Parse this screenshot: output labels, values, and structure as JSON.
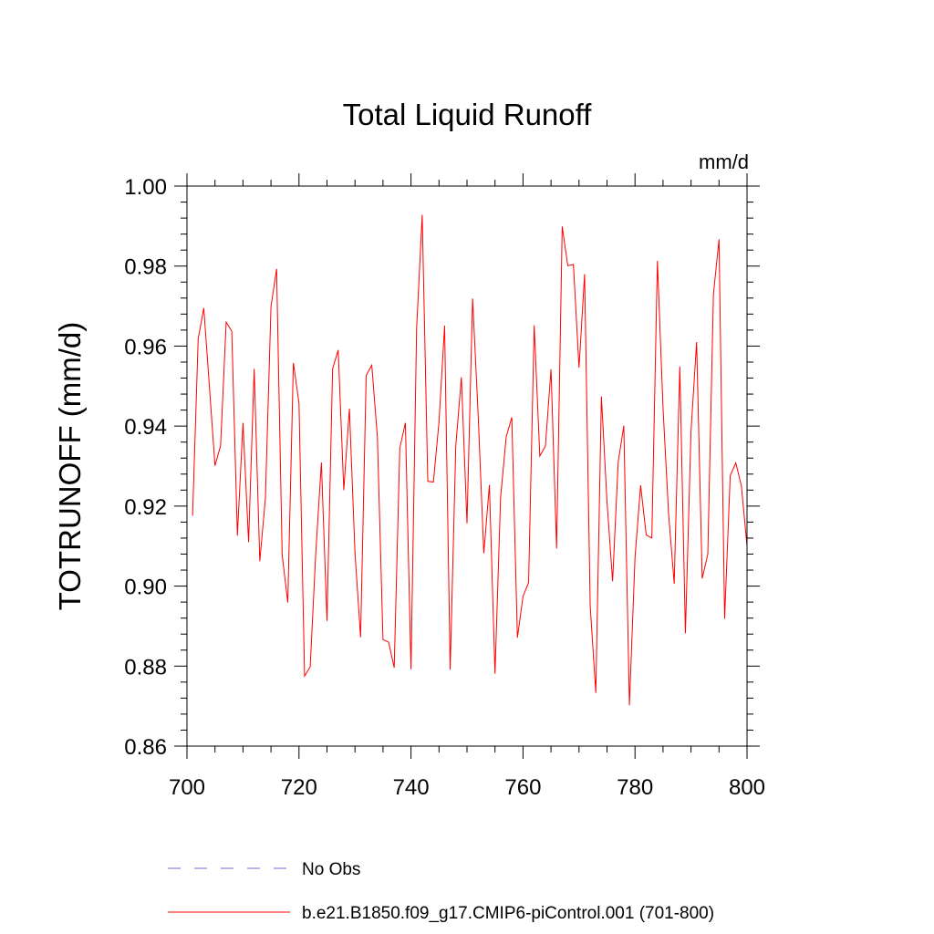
{
  "chart_data": {
    "type": "line",
    "title": "Total Liquid Runoff",
    "units": "mm/d",
    "ylabel": "TOTRUNOFF  (mm/d)",
    "xlabel": "",
    "xlim": [
      700,
      800
    ],
    "ylim": [
      0.86,
      1.0
    ],
    "x_ticks": [
      700,
      720,
      740,
      760,
      780,
      800
    ],
    "x_tick_labels": [
      "700",
      "720",
      "740",
      "760",
      "780",
      "800"
    ],
    "y_ticks": [
      0.86,
      0.88,
      0.9,
      0.92,
      0.94,
      0.96,
      0.98,
      1.0
    ],
    "y_tick_labels": [
      "0.86",
      "0.88",
      "0.90",
      "0.92",
      "0.94",
      "0.96",
      "0.98",
      "1.00"
    ],
    "grid": false,
    "legend": [
      {
        "label": "No Obs",
        "color": "#7b68d9",
        "style": "dashed"
      },
      {
        "label": "b.e21.B1850.f09_g17.CMIP6-piControl.001 (701-800)",
        "color": "#ff0000",
        "style": "solid"
      }
    ],
    "series": [
      {
        "name": "b.e21.B1850.f09_g17.CMIP6-piControl.001 (701-800)",
        "color": "#ff0000",
        "x": [
          701,
          702,
          703,
          704,
          705,
          706,
          707,
          708,
          709,
          710,
          711,
          712,
          713,
          714,
          715,
          716,
          717,
          718,
          719,
          720,
          721,
          722,
          723,
          724,
          725,
          726,
          727,
          728,
          729,
          730,
          731,
          732,
          733,
          734,
          735,
          736,
          737,
          738,
          739,
          740,
          741,
          742,
          743,
          744,
          745,
          746,
          747,
          748,
          749,
          750,
          751,
          752,
          753,
          754,
          755,
          756,
          757,
          758,
          759,
          760,
          761,
          762,
          763,
          764,
          765,
          766,
          767,
          768,
          769,
          770,
          771,
          772,
          773,
          774,
          775,
          776,
          777,
          778,
          779,
          780,
          781,
          782,
          783,
          784,
          785,
          786,
          787,
          788,
          789,
          790,
          791,
          792,
          793,
          794,
          795,
          796,
          797,
          798,
          799,
          800
        ],
        "values": [
          0.9176,
          0.9618,
          0.9695,
          0.95,
          0.9301,
          0.9351,
          0.966,
          0.9637,
          0.9126,
          0.9408,
          0.911,
          0.9543,
          0.9062,
          0.9219,
          0.9699,
          0.9793,
          0.9077,
          0.8959,
          0.9558,
          0.9457,
          0.8775,
          0.8798,
          0.9084,
          0.9309,
          0.8913,
          0.9543,
          0.959,
          0.924,
          0.9444,
          0.9083,
          0.8872,
          0.9527,
          0.9552,
          0.9373,
          0.8866,
          0.886,
          0.8796,
          0.9345,
          0.9408,
          0.8792,
          0.9643,
          0.9928,
          0.9262,
          0.926,
          0.941,
          0.9651,
          0.8791,
          0.9351,
          0.9522,
          0.9157,
          0.9719,
          0.9426,
          0.9082,
          0.9253,
          0.8781,
          0.9222,
          0.9373,
          0.9422,
          0.8871,
          0.8974,
          0.9009,
          0.9652,
          0.9325,
          0.935,
          0.9542,
          0.9094,
          0.9899,
          0.9801,
          0.9804,
          0.9546,
          0.978,
          0.895,
          0.8733,
          0.9474,
          0.9211,
          0.9012,
          0.931,
          0.9401,
          0.8702,
          0.9071,
          0.9252,
          0.9128,
          0.912,
          0.9813,
          0.9446,
          0.918,
          0.9006,
          0.9549,
          0.8882,
          0.9387,
          0.961,
          0.9019,
          0.908,
          0.9729,
          0.9867,
          0.8918,
          0.9276,
          0.9308,
          0.925,
          0.91
        ]
      }
    ]
  }
}
